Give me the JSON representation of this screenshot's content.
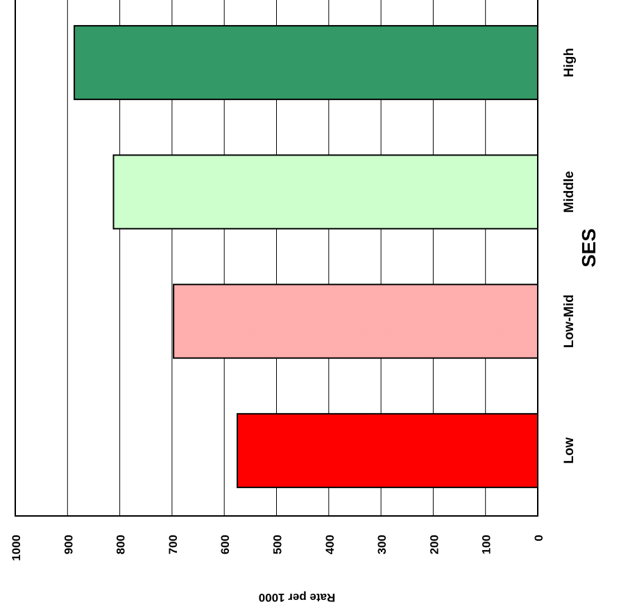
{
  "chart_data": {
    "type": "bar",
    "orientation": "horizontal",
    "rotated_page": true,
    "categories": [
      "Low",
      "Low-Mid",
      "Middle",
      "High"
    ],
    "values": [
      575,
      697,
      812,
      887
    ],
    "colors": [
      "#ff0000",
      "#ffb3b3",
      "#ccffcc",
      "#339966"
    ],
    "title": "",
    "xlabel": "Rate per 1000",
    "ylabel": "SES",
    "xlim": [
      0,
      1000
    ],
    "ticks": [
      "0",
      "100",
      "200",
      "300",
      "400",
      "500",
      "600",
      "700",
      "800",
      "900",
      "1000"
    ],
    "grid": true,
    "legend": "none"
  }
}
